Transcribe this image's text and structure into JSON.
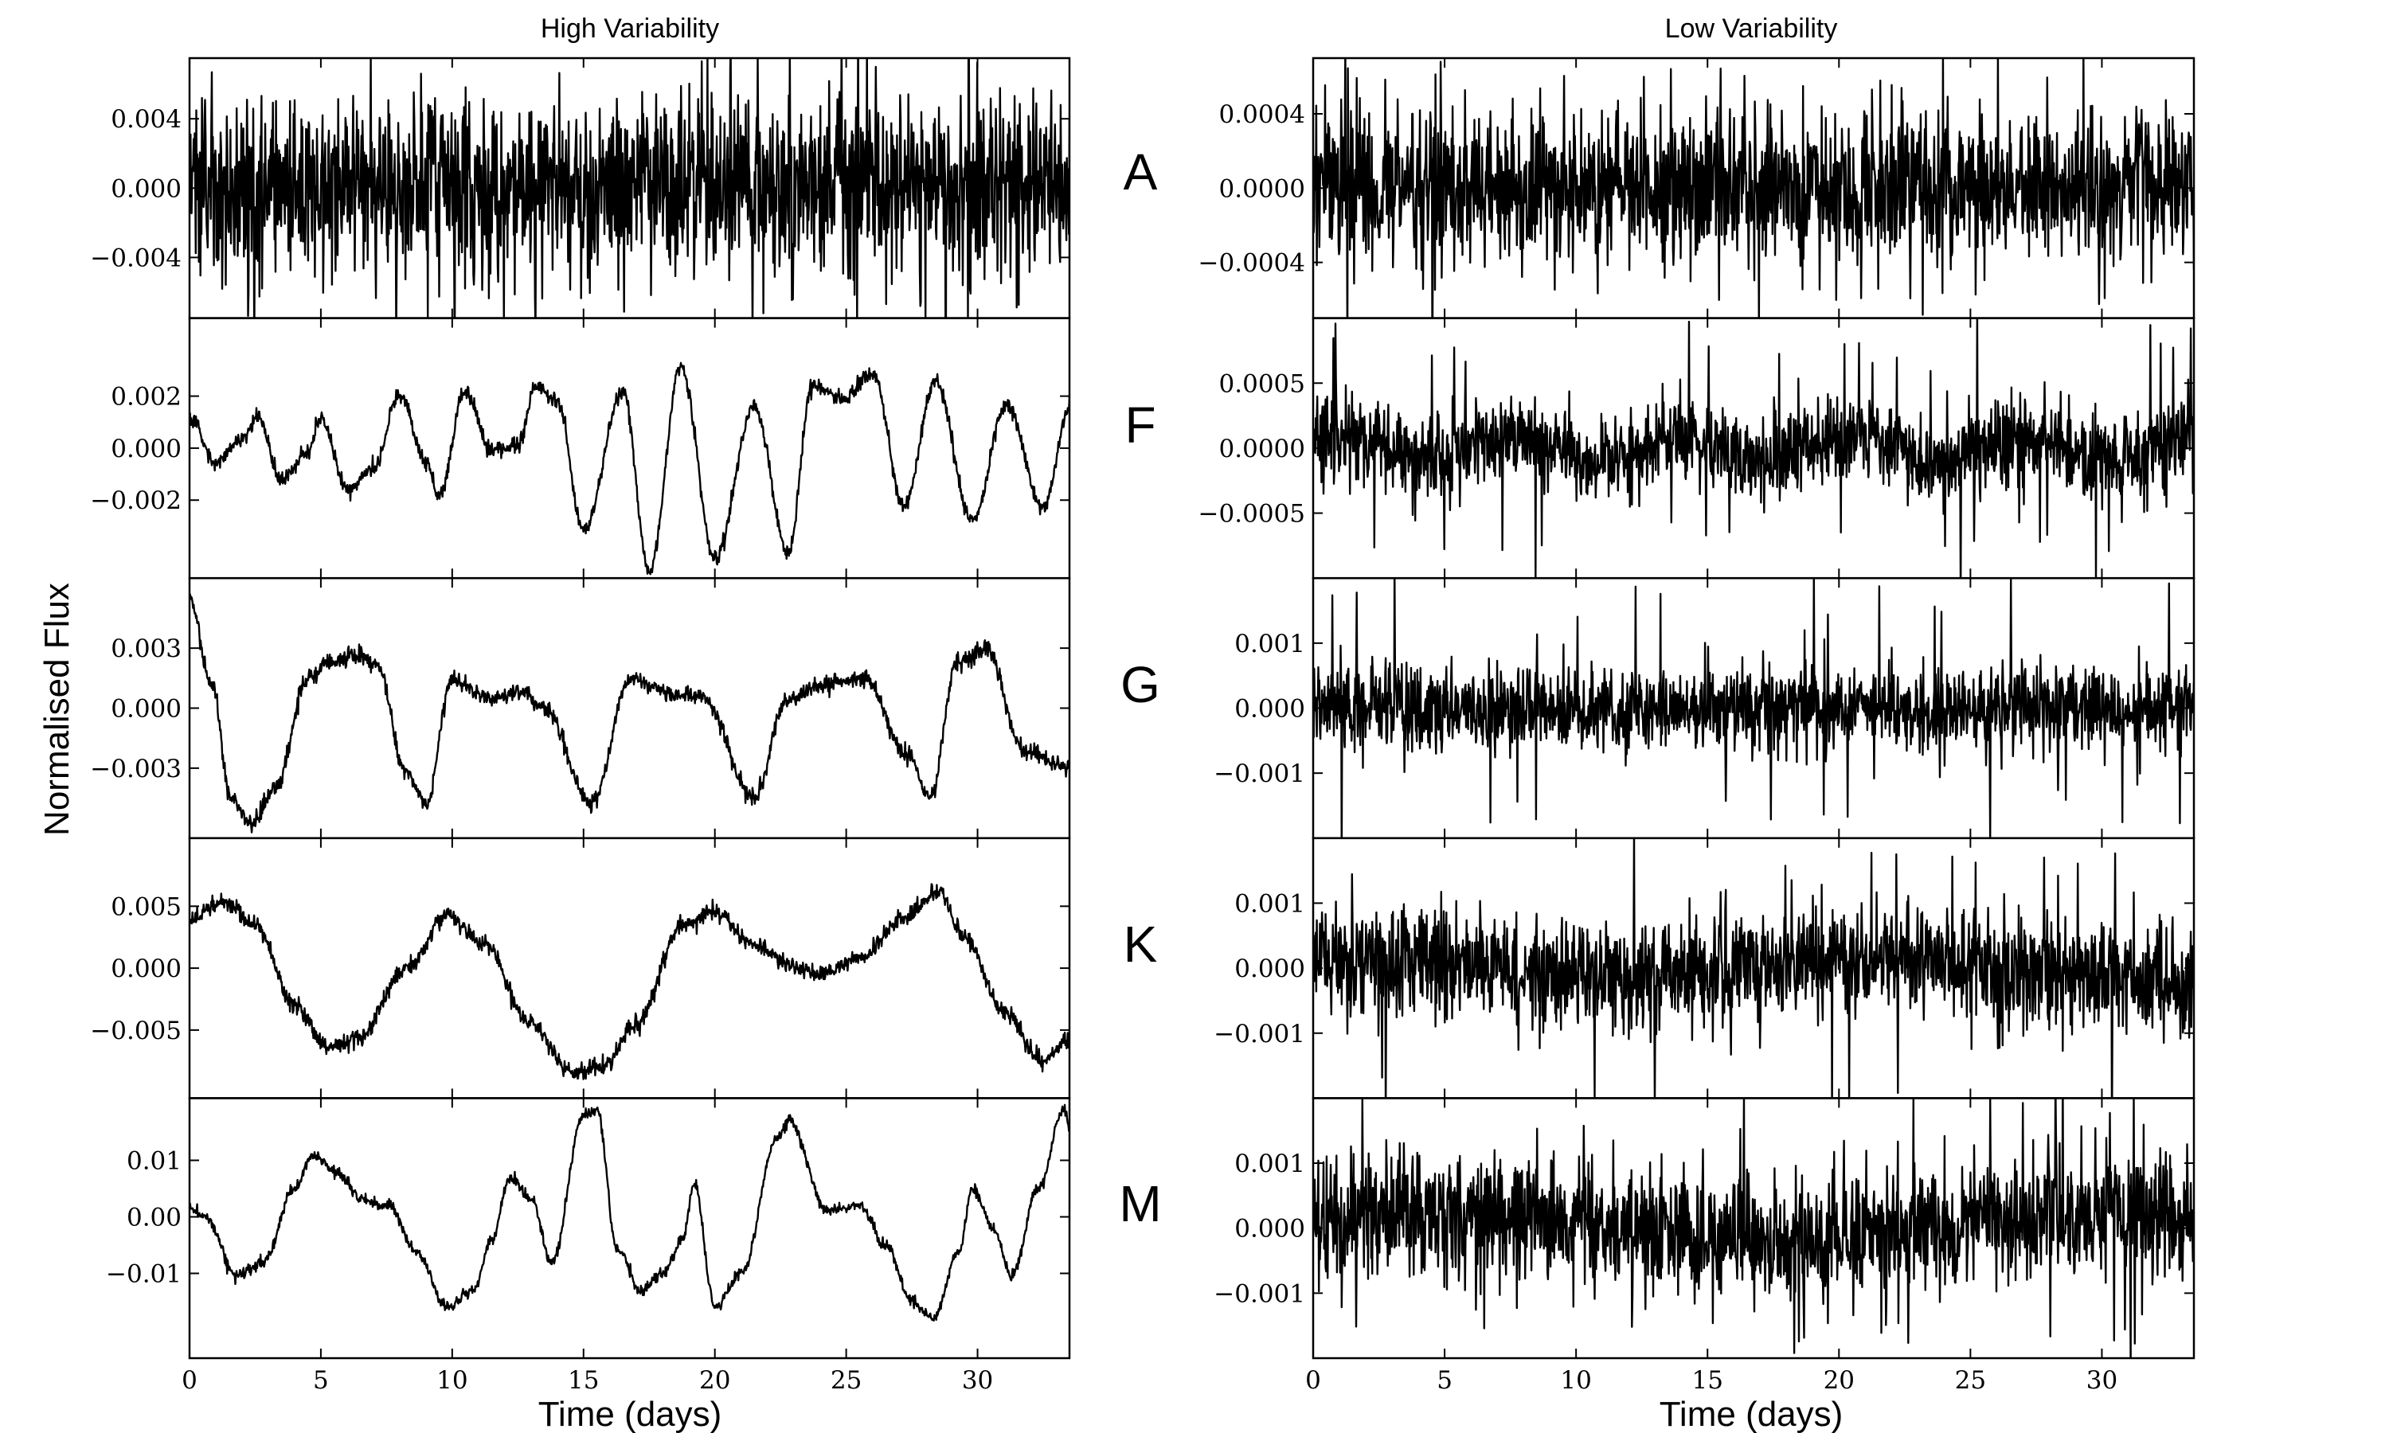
{
  "chart_data": {
    "type": "line",
    "y_axis_label": "Normalised Flux",
    "x_axis_label": "Time (days)",
    "xlim": [
      0,
      33.5
    ],
    "x_ticks": [
      0,
      5,
      10,
      15,
      20,
      25,
      30
    ],
    "x_tick_labels": [
      "0",
      "5",
      "10",
      "15",
      "20",
      "25",
      "30"
    ],
    "columns": [
      {
        "title": "High Variability",
        "panels": [
          {
            "ylim": [
              -0.0075,
              0.0075
            ],
            "y_ticks": [
              0.004,
              0.0,
              -0.004
            ],
            "y_tick_labels": [
              "0.004",
              "0.000",
              "−0.004"
            ],
            "signal": {
              "kind": "noise",
              "amplitude": 0.0026,
              "spikes": 0.0073,
              "components": []
            }
          },
          {
            "ylim": [
              -0.005,
              0.005
            ],
            "y_ticks": [
              0.002,
              0.0,
              -0.002
            ],
            "y_tick_labels": [
              "0.002",
              "0.000",
              "−0.002"
            ],
            "signal": {
              "kind": "curve",
              "noise": 0.00015,
              "points": [
                [
                  0,
                  0.0012
                ],
                [
                  1,
                  -0.0006
                ],
                [
                  2,
                  0.0004
                ],
                [
                  2.6,
                  0.0012
                ],
                [
                  3.5,
                  -0.0012
                ],
                [
                  4.5,
                  -0.0002
                ],
                [
                  5,
                  0.0011
                ],
                [
                  6,
                  -0.0015
                ],
                [
                  7,
                  -0.0008
                ],
                [
                  8,
                  0.0021
                ],
                [
                  9,
                  -0.0005
                ],
                [
                  9.5,
                  -0.0018
                ],
                [
                  10.5,
                  0.0022
                ],
                [
                  11.5,
                  -0.0001
                ],
                [
                  12.5,
                  0.0001
                ],
                [
                  13.2,
                  0.0024
                ],
                [
                  14,
                  0.0018
                ],
                [
                  15,
                  -0.0032
                ],
                [
                  16.5,
                  0.0022
                ],
                [
                  17.5,
                  -0.0048
                ],
                [
                  18.7,
                  0.0031
                ],
                [
                  20,
                  -0.0042
                ],
                [
                  21.5,
                  0.0016
                ],
                [
                  22.8,
                  -0.004
                ],
                [
                  23.7,
                  0.0024
                ],
                [
                  24.9,
                  0.0019
                ],
                [
                  26,
                  0.0029
                ],
                [
                  27.2,
                  -0.0022
                ],
                [
                  28.4,
                  0.0026
                ],
                [
                  29.8,
                  -0.0028
                ],
                [
                  31.1,
                  0.0017
                ],
                [
                  32.5,
                  -0.0023
                ],
                [
                  33.5,
                  0.0015
                ]
              ]
            }
          },
          {
            "ylim": [
              -0.0065,
              0.0065
            ],
            "y_ticks": [
              0.003,
              0.0,
              -0.003
            ],
            "y_tick_labels": [
              "0.003",
              "0.000",
              "−0.003"
            ],
            "signal": {
              "kind": "curve",
              "noise": 0.00022,
              "points": [
                [
                  0,
                  0.0055
                ],
                [
                  0.8,
                  0.0015
                ],
                [
                  1.6,
                  -0.0045
                ],
                [
                  2.3,
                  -0.0058
                ],
                [
                  3.3,
                  -0.004
                ],
                [
                  4.5,
                  0.0015
                ],
                [
                  5.5,
                  0.0024
                ],
                [
                  6.5,
                  0.0027
                ],
                [
                  7.2,
                  0.002
                ],
                [
                  8.2,
                  -0.003
                ],
                [
                  9,
                  -0.0048
                ],
                [
                  10,
                  0.0014
                ],
                [
                  11.5,
                  0.0005
                ],
                [
                  12.5,
                  0.0008
                ],
                [
                  13.5,
                  0.0001
                ],
                [
                  15.3,
                  -0.0048
                ],
                [
                  16.8,
                  0.0015
                ],
                [
                  18.5,
                  0.0007
                ],
                [
                  19.5,
                  0.0006
                ],
                [
                  21.5,
                  -0.0045
                ],
                [
                  22.7,
                  0.0003
                ],
                [
                  24,
                  0.0012
                ],
                [
                  25.7,
                  0.0015
                ],
                [
                  27.3,
                  -0.0024
                ],
                [
                  28.2,
                  -0.0045
                ],
                [
                  29.2,
                  0.0022
                ],
                [
                  30.3,
                  0.003
                ],
                [
                  31.8,
                  -0.0022
                ],
                [
                  33.5,
                  -0.0029
                ]
              ]
            }
          },
          {
            "ylim": [
              -0.0105,
              0.0105
            ],
            "y_ticks": [
              0.005,
              0.0,
              -0.005
            ],
            "y_tick_labels": [
              "0.005",
              "0.000",
              "−0.005"
            ],
            "signal": {
              "kind": "curve",
              "noise": 0.00035,
              "points": [
                [
                  0,
                  0.0038
                ],
                [
                  1.3,
                  0.0053
                ],
                [
                  2.5,
                  0.0035
                ],
                [
                  4,
                  -0.003
                ],
                [
                  5.3,
                  -0.0065
                ],
                [
                  6.5,
                  -0.0055
                ],
                [
                  8.2,
                  -0.0002
                ],
                [
                  9.8,
                  0.0042
                ],
                [
                  11.2,
                  0.002
                ],
                [
                  13,
                  -0.0045
                ],
                [
                  14.6,
                  -0.0085
                ],
                [
                  15.8,
                  -0.008
                ],
                [
                  17,
                  -0.0045
                ],
                [
                  18.8,
                  0.0035
                ],
                [
                  20,
                  0.0045
                ],
                [
                  21.5,
                  0.0018
                ],
                [
                  23,
                  0.0002
                ],
                [
                  24,
                  -0.0005
                ],
                [
                  25.5,
                  0.0008
                ],
                [
                  27.2,
                  0.004
                ],
                [
                  28.5,
                  0.0062
                ],
                [
                  29.5,
                  0.0025
                ],
                [
                  31,
                  -0.0035
                ],
                [
                  32.5,
                  -0.0075
                ],
                [
                  33.5,
                  -0.0058
                ]
              ]
            }
          },
          {
            "ylim": [
              -0.025,
              0.021
            ],
            "y_ticks": [
              0.01,
              0.0,
              -0.01
            ],
            "y_tick_labels": [
              "0.01",
              "0.00",
              "−0.01"
            ],
            "signal": {
              "kind": "curve",
              "noise": 0.0005,
              "points": [
                [
                  0,
                  0.0015
                ],
                [
                  0.6,
                  0.0
                ],
                [
                  1.8,
                  -0.0105
                ],
                [
                  2.8,
                  -0.008
                ],
                [
                  4,
                  0.005
                ],
                [
                  4.7,
                  0.011
                ],
                [
                  5.6,
                  0.008
                ],
                [
                  6.6,
                  0.003
                ],
                [
                  7.6,
                  0.002
                ],
                [
                  8.6,
                  -0.006
                ],
                [
                  9.8,
                  -0.016
                ],
                [
                  10.8,
                  -0.013
                ],
                [
                  11.5,
                  -0.004
                ],
                [
                  12.2,
                  0.007
                ],
                [
                  13,
                  0.003
                ],
                [
                  13.8,
                  -0.008
                ],
                [
                  15,
                  0.018
                ],
                [
                  15.5,
                  0.019
                ],
                [
                  16.3,
                  -0.006
                ],
                [
                  17.2,
                  -0.013
                ],
                [
                  18,
                  -0.01
                ],
                [
                  18.8,
                  -0.004
                ],
                [
                  19.2,
                  0.006
                ],
                [
                  20,
                  -0.016
                ],
                [
                  21,
                  -0.01
                ],
                [
                  22.4,
                  0.014
                ],
                [
                  22.8,
                  0.017
                ],
                [
                  24.3,
                  0.001
                ],
                [
                  25.5,
                  0.002
                ],
                [
                  26.5,
                  -0.005
                ],
                [
                  27.5,
                  -0.015
                ],
                [
                  28.3,
                  -0.018
                ],
                [
                  29.3,
                  -0.006
                ],
                [
                  29.8,
                  0.005
                ],
                [
                  30.6,
                  -0.002
                ],
                [
                  31.3,
                  -0.0105
                ],
                [
                  32.3,
                  0.005
                ],
                [
                  33.3,
                  0.019
                ],
                [
                  33.5,
                  0.016
                ]
              ]
            }
          }
        ]
      },
      {
        "title": "Low Variability",
        "panels": [
          {
            "ylim": [
              -0.0007,
              0.0007
            ],
            "y_ticks": [
              0.0004,
              0.0,
              -0.0004
            ],
            "y_tick_labels": [
              "0.0004",
              "0.0000",
              "−0.0004"
            ],
            "signal": {
              "kind": "noise",
              "amplitude": 0.00021,
              "spikes": 0.00058,
              "components": []
            }
          },
          {
            "ylim": [
              -0.001,
              0.001
            ],
            "y_ticks": [
              0.0005,
              0.0,
              -0.0005
            ],
            "y_tick_labels": [
              "0.0005",
              "0.0000",
              "−0.0005"
            ],
            "signal": {
              "kind": "noise",
              "amplitude": 0.00016,
              "spikes": 0.00088,
              "components": [
                [
                  0.0001,
                  6.5,
                  0.5
                ]
              ]
            }
          },
          {
            "ylim": [
              -0.002,
              0.002
            ],
            "y_ticks": [
              0.001,
              0.0,
              -0.001
            ],
            "y_tick_labels": [
              "0.001",
              "0.000",
              "−0.001"
            ],
            "signal": {
              "kind": "noise",
              "amplitude": 0.00032,
              "spikes": 0.0019,
              "components": []
            }
          },
          {
            "ylim": [
              -0.002,
              0.002
            ],
            "y_ticks": [
              0.001,
              0.0,
              -0.001
            ],
            "y_tick_labels": [
              "0.001",
              "0.000",
              "−0.001"
            ],
            "signal": {
              "kind": "noise",
              "amplitude": 0.00042,
              "spikes": 0.0019,
              "components": [
                [
                  0.00015,
                  20,
                  1.0
                ]
              ]
            }
          },
          {
            "ylim": [
              -0.002,
              0.002
            ],
            "y_ticks": [
              0.001,
              0.0,
              -0.001
            ],
            "y_tick_labels": [
              "0.001",
              "0.000",
              "−0.001"
            ],
            "signal": {
              "kind": "noise",
              "amplitude": 0.00046,
              "spikes": 0.0019,
              "components": [
                [
                  0.0002,
                  25,
                  0.3
                ]
              ]
            }
          }
        ]
      }
    ],
    "row_labels": [
      "A",
      "F",
      "G",
      "K",
      "M"
    ]
  }
}
